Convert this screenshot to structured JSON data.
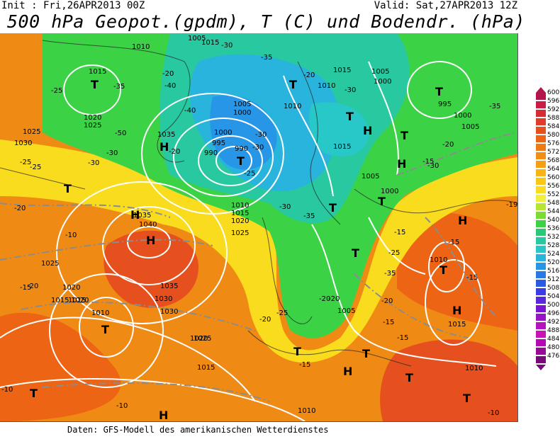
{
  "header": {
    "init": "Init : Fri,26APR2013 00Z",
    "valid": "Valid: Sat,27APR2013 12Z",
    "title": "500 hPa Geopot.(gpdm), T (C) und Bodendr. (hPa)"
  },
  "footer": "Daten: GFS-Modell des amerikanischen Wetterdienstes",
  "legend": {
    "levels": [
      "600",
      "596",
      "592",
      "588",
      "584",
      "580",
      "576",
      "572",
      "568",
      "564",
      "560",
      "556",
      "552",
      "548",
      "544",
      "540",
      "536",
      "532",
      "528",
      "524",
      "520",
      "516",
      "512",
      "508",
      "504",
      "500",
      "496",
      "492",
      "488",
      "484",
      "480",
      "476"
    ],
    "colors": [
      "#b4144c",
      "#c81e46",
      "#d72d32",
      "#e13c28",
      "#e6501e",
      "#ec6414",
      "#ef7a12",
      "#f28e14",
      "#f5a014",
      "#f8b414",
      "#fac814",
      "#fadc1e",
      "#f0f03c",
      "#b4e632",
      "#78dc32",
      "#3cd246",
      "#28c878",
      "#28c8a0",
      "#28c8c8",
      "#28b4dc",
      "#2896e6",
      "#2878e6",
      "#285ae6",
      "#3c3ce6",
      "#5a28dc",
      "#7814d2",
      "#9614c8",
      "#b414be",
      "#c814b4",
      "#b40ab4",
      "#960a96",
      "#780a78"
    ]
  },
  "map_labels": {
    "highs": [
      "H",
      "H",
      "H",
      "H",
      "H",
      "H",
      "H",
      "H",
      "H",
      "H",
      "H",
      "H",
      "H",
      "H",
      "H",
      "H",
      "H"
    ],
    "lows": [
      "T",
      "T",
      "T",
      "T",
      "T",
      "T",
      "T",
      "T",
      "T",
      "T",
      "T",
      "T",
      "T",
      "T",
      "T",
      "T",
      "T",
      "T",
      "T"
    ],
    "pressure": [
      "1010",
      "1015",
      "1015",
      "1020",
      "1025",
      "1025",
      "1030",
      "1035",
      "1040",
      "1035",
      "1030",
      "1025",
      "1020",
      "1015",
      "1010",
      "1005",
      "1000",
      "995",
      "990",
      "990",
      "1000",
      "1005",
      "1010",
      "1015",
      "1020",
      "1025",
      "1015",
      "1010",
      "1005",
      "1000",
      "995",
      "1000",
      "1005",
      "1015",
      "1010",
      "1005",
      "1000",
      "1005",
      "1015",
      "1010",
      "1010",
      "1015",
      "1020",
      "1025",
      "1030",
      "1035",
      "1020",
      "1015",
      "1010",
      "1025",
      "1015",
      "1010",
      "1005",
      "1015",
      "1010",
      "1005"
    ],
    "temps": [
      "-25",
      "-35",
      "-20",
      "-40",
      "-50",
      "-30",
      "-25",
      "-20",
      "-30",
      "-40",
      "-35",
      "-30",
      "-35",
      "-20",
      "-25",
      "-30",
      "-35",
      "-20",
      "-30",
      "-25",
      "-30",
      "-20",
      "-15",
      "-35",
      "-25",
      "-20",
      "-20",
      "-15",
      "-15",
      "-15",
      "-15",
      "-10",
      "-10",
      "-15",
      "-15",
      "-19",
      "-10",
      "-10",
      "-15",
      "-20",
      "-20",
      "-20",
      "-25",
      "-30",
      "-30"
    ]
  }
}
